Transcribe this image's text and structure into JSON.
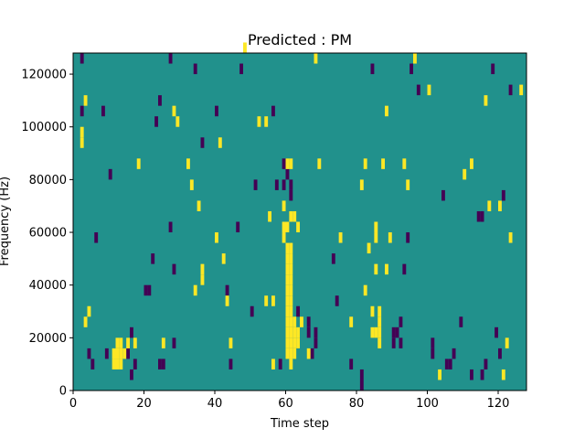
{
  "chart_data": {
    "type": "heatmap",
    "title": "Predicted : PM",
    "xlabel": "Time step",
    "ylabel": "Frequency (Hz)",
    "xlim": [
      0,
      128
    ],
    "ylim": [
      0,
      128000
    ],
    "x_ticks": [
      0,
      20,
      40,
      60,
      80,
      100,
      120
    ],
    "y_ticks": [
      0,
      20000,
      40000,
      60000,
      80000,
      100000,
      120000
    ],
    "x_tick_labels": [
      "0",
      "20",
      "40",
      "60",
      "80",
      "100",
      "120"
    ],
    "y_tick_labels": [
      "0",
      "20000",
      "40000",
      "60000",
      "80000",
      "100000",
      "120000"
    ],
    "grid": false,
    "colors": {
      "background": "#21918c",
      "high": "#fde725",
      "low": "#440154"
    },
    "cell_height_hz": 4000,
    "high_cells": [
      {
        "t": 2,
        "f": 96000
      },
      {
        "t": 2,
        "f": 92000
      },
      {
        "t": 3,
        "f": 108000
      },
      {
        "t": 3,
        "f": 24000
      },
      {
        "t": 4,
        "f": 28000
      },
      {
        "t": 11,
        "f": 12000
      },
      {
        "t": 11,
        "f": 8000
      },
      {
        "t": 12,
        "f": 16000
      },
      {
        "t": 12,
        "f": 12000
      },
      {
        "t": 12,
        "f": 8000
      },
      {
        "t": 13,
        "f": 16000
      },
      {
        "t": 13,
        "f": 12000
      },
      {
        "t": 13,
        "f": 8000
      },
      {
        "t": 14,
        "f": 12000
      },
      {
        "t": 15,
        "f": 16000
      },
      {
        "t": 17,
        "f": 16000
      },
      {
        "t": 18,
        "f": 84000
      },
      {
        "t": 25,
        "f": 16000
      },
      {
        "t": 28,
        "f": 104000
      },
      {
        "t": 29,
        "f": 100000
      },
      {
        "t": 32,
        "f": 84000
      },
      {
        "t": 33,
        "f": 76000
      },
      {
        "t": 34,
        "f": 36000
      },
      {
        "t": 35,
        "f": 68000
      },
      {
        "t": 36,
        "f": 40000
      },
      {
        "t": 36,
        "f": 44000
      },
      {
        "t": 40,
        "f": 56000
      },
      {
        "t": 41,
        "f": 92000
      },
      {
        "t": 42,
        "f": 48000
      },
      {
        "t": 43,
        "f": 32000
      },
      {
        "t": 44,
        "f": 16000
      },
      {
        "t": 48,
        "f": 128000
      },
      {
        "t": 52,
        "f": 100000
      },
      {
        "t": 54,
        "f": 100000
      },
      {
        "t": 54,
        "f": 32000
      },
      {
        "t": 55,
        "f": 64000
      },
      {
        "t": 56,
        "f": 32000
      },
      {
        "t": 56,
        "f": 8000
      },
      {
        "t": 60,
        "f": 84000
      },
      {
        "t": 61,
        "f": 84000
      },
      {
        "t": 59,
        "f": 60000
      },
      {
        "t": 59,
        "f": 56000
      },
      {
        "t": 59,
        "f": 68000
      },
      {
        "t": 60,
        "f": 60000
      },
      {
        "t": 60,
        "f": 52000
      },
      {
        "t": 60,
        "f": 48000
      },
      {
        "t": 60,
        "f": 44000
      },
      {
        "t": 60,
        "f": 40000
      },
      {
        "t": 60,
        "f": 36000
      },
      {
        "t": 60,
        "f": 32000
      },
      {
        "t": 60,
        "f": 28000
      },
      {
        "t": 60,
        "f": 24000
      },
      {
        "t": 60,
        "f": 20000
      },
      {
        "t": 60,
        "f": 16000
      },
      {
        "t": 60,
        "f": 12000
      },
      {
        "t": 61,
        "f": 64000
      },
      {
        "t": 61,
        "f": 52000
      },
      {
        "t": 61,
        "f": 48000
      },
      {
        "t": 61,
        "f": 44000
      },
      {
        "t": 61,
        "f": 40000
      },
      {
        "t": 61,
        "f": 36000
      },
      {
        "t": 61,
        "f": 32000
      },
      {
        "t": 61,
        "f": 28000
      },
      {
        "t": 61,
        "f": 24000
      },
      {
        "t": 61,
        "f": 20000
      },
      {
        "t": 61,
        "f": 16000
      },
      {
        "t": 61,
        "f": 12000
      },
      {
        "t": 61,
        "f": 8000
      },
      {
        "t": 62,
        "f": 64000
      },
      {
        "t": 62,
        "f": 24000
      },
      {
        "t": 62,
        "f": 20000
      },
      {
        "t": 62,
        "f": 16000
      },
      {
        "t": 62,
        "f": 12000
      },
      {
        "t": 63,
        "f": 60000
      },
      {
        "t": 63,
        "f": 20000
      },
      {
        "t": 63,
        "f": 16000
      },
      {
        "t": 64,
        "f": 24000
      },
      {
        "t": 66,
        "f": 12000
      },
      {
        "t": 68,
        "f": 124000
      },
      {
        "t": 69,
        "f": 84000
      },
      {
        "t": 75,
        "f": 56000
      },
      {
        "t": 78,
        "f": 24000
      },
      {
        "t": 81,
        "f": 76000
      },
      {
        "t": 82,
        "f": 84000
      },
      {
        "t": 82,
        "f": 36000
      },
      {
        "t": 83,
        "f": 52000
      },
      {
        "t": 84,
        "f": 28000
      },
      {
        "t": 84,
        "f": 20000
      },
      {
        "t": 85,
        "f": 60000
      },
      {
        "t": 85,
        "f": 56000
      },
      {
        "t": 85,
        "f": 44000
      },
      {
        "t": 85,
        "f": 20000
      },
      {
        "t": 86,
        "f": 28000
      },
      {
        "t": 86,
        "f": 24000
      },
      {
        "t": 86,
        "f": 20000
      },
      {
        "t": 86,
        "f": 16000
      },
      {
        "t": 87,
        "f": 84000
      },
      {
        "t": 88,
        "f": 44000
      },
      {
        "t": 88,
        "f": 104000
      },
      {
        "t": 89,
        "f": 56000
      },
      {
        "t": 93,
        "f": 84000
      },
      {
        "t": 94,
        "f": 76000
      },
      {
        "t": 96,
        "f": 124000
      },
      {
        "t": 100,
        "f": 112000
      },
      {
        "t": 103,
        "f": 4000
      },
      {
        "t": 110,
        "f": 80000
      },
      {
        "t": 112,
        "f": 84000
      },
      {
        "t": 116,
        "f": 108000
      },
      {
        "t": 117,
        "f": 68000
      },
      {
        "t": 120,
        "f": 68000
      },
      {
        "t": 121,
        "f": 4000
      },
      {
        "t": 122,
        "f": 16000
      },
      {
        "t": 123,
        "f": 56000
      },
      {
        "t": 126,
        "f": 112000
      }
    ],
    "low_cells": [
      {
        "t": 2,
        "f": 124000
      },
      {
        "t": 2,
        "f": 104000
      },
      {
        "t": 4,
        "f": 12000
      },
      {
        "t": 5,
        "f": 8000
      },
      {
        "t": 6,
        "f": 56000
      },
      {
        "t": 8,
        "f": 104000
      },
      {
        "t": 9,
        "f": 12000
      },
      {
        "t": 10,
        "f": 80000
      },
      {
        "t": 15,
        "f": 12000
      },
      {
        "t": 16,
        "f": 4000
      },
      {
        "t": 16,
        "f": 20000
      },
      {
        "t": 17,
        "f": 8000
      },
      {
        "t": 20,
        "f": 36000
      },
      {
        "t": 21,
        "f": 36000
      },
      {
        "t": 22,
        "f": 48000
      },
      {
        "t": 23,
        "f": 100000
      },
      {
        "t": 24,
        "f": 108000
      },
      {
        "t": 24,
        "f": 8000
      },
      {
        "t": 25,
        "f": 8000
      },
      {
        "t": 27,
        "f": 60000
      },
      {
        "t": 27,
        "f": 124000
      },
      {
        "t": 28,
        "f": 44000
      },
      {
        "t": 28,
        "f": 16000
      },
      {
        "t": 34,
        "f": 120000
      },
      {
        "t": 36,
        "f": 92000
      },
      {
        "t": 40,
        "f": 104000
      },
      {
        "t": 43,
        "f": 36000
      },
      {
        "t": 44,
        "f": 8000
      },
      {
        "t": 46,
        "f": 60000
      },
      {
        "t": 47,
        "f": 120000
      },
      {
        "t": 50,
        "f": 28000
      },
      {
        "t": 51,
        "f": 76000
      },
      {
        "t": 56,
        "f": 104000
      },
      {
        "t": 57,
        "f": 76000
      },
      {
        "t": 58,
        "f": 8000
      },
      {
        "t": 59,
        "f": 84000
      },
      {
        "t": 59,
        "f": 76000
      },
      {
        "t": 60,
        "f": 80000
      },
      {
        "t": 61,
        "f": 76000
      },
      {
        "t": 61,
        "f": 72000
      },
      {
        "t": 63,
        "f": 28000
      },
      {
        "t": 66,
        "f": 20000
      },
      {
        "t": 66,
        "f": 24000
      },
      {
        "t": 67,
        "f": 12000
      },
      {
        "t": 68,
        "f": 16000
      },
      {
        "t": 68,
        "f": 20000
      },
      {
        "t": 73,
        "f": 48000
      },
      {
        "t": 74,
        "f": 32000
      },
      {
        "t": 78,
        "f": 8000
      },
      {
        "t": 81,
        "f": 4000
      },
      {
        "t": 81,
        "f": 0
      },
      {
        "t": 84,
        "f": 120000
      },
      {
        "t": 90,
        "f": 20000
      },
      {
        "t": 90,
        "f": 16000
      },
      {
        "t": 91,
        "f": 20000
      },
      {
        "t": 92,
        "f": 24000
      },
      {
        "t": 92,
        "f": 16000
      },
      {
        "t": 93,
        "f": 44000
      },
      {
        "t": 94,
        "f": 56000
      },
      {
        "t": 95,
        "f": 120000
      },
      {
        "t": 97,
        "f": 112000
      },
      {
        "t": 101,
        "f": 16000
      },
      {
        "t": 101,
        "f": 12000
      },
      {
        "t": 104,
        "f": 72000
      },
      {
        "t": 105,
        "f": 8000
      },
      {
        "t": 106,
        "f": 8000
      },
      {
        "t": 107,
        "f": 12000
      },
      {
        "t": 109,
        "f": 24000
      },
      {
        "t": 112,
        "f": 4000
      },
      {
        "t": 114,
        "f": 64000
      },
      {
        "t": 115,
        "f": 64000
      },
      {
        "t": 115,
        "f": 4000
      },
      {
        "t": 116,
        "f": 8000
      },
      {
        "t": 118,
        "f": 120000
      },
      {
        "t": 119,
        "f": 20000
      },
      {
        "t": 120,
        "f": 12000
      },
      {
        "t": 121,
        "f": 72000
      },
      {
        "t": 123,
        "f": 112000
      }
    ]
  }
}
